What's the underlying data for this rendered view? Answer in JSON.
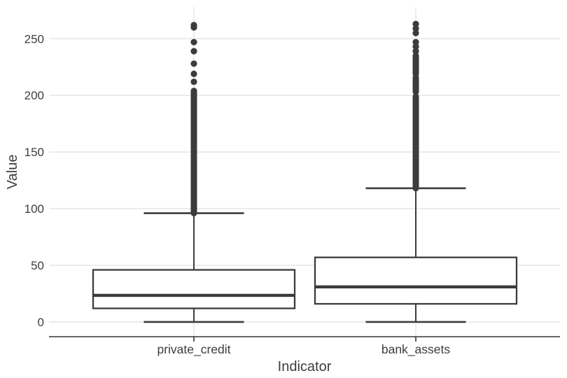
{
  "figure": {
    "background": "#ffffff",
    "box_color": "#3c3c3c",
    "grid_color": "#e7e7e7",
    "axis_color": "#333333",
    "text_color": "#3d3d3d"
  },
  "chart_data": {
    "type": "boxplot",
    "title": "",
    "xlabel": "Indicator",
    "ylabel": "Value",
    "yticks": [
      0,
      50,
      100,
      150,
      200,
      250
    ],
    "ylim": [
      -13,
      278
    ],
    "grid": true,
    "legend": "none",
    "categories": [
      "private_credit",
      "bank_assets"
    ],
    "series": [
      {
        "name": "private_credit",
        "q1": 12,
        "median": 23.5,
        "q3": 46,
        "whisker_low": 0,
        "whisker_high": 96,
        "outlier_dense_segments": [
          [
            96,
            204
          ]
        ],
        "outlier_points": [
          212,
          219,
          228,
          239,
          247,
          260,
          262
        ]
      },
      {
        "name": "bank_assets",
        "q1": 16,
        "median": 31,
        "q3": 57,
        "whisker_low": 0,
        "whisker_high": 118,
        "outlier_dense_segments": [
          [
            118,
            199
          ],
          [
            203,
            216
          ],
          [
            219,
            235
          ]
        ],
        "outlier_points": [
          239,
          243,
          247,
          255,
          259,
          263
        ]
      }
    ]
  }
}
